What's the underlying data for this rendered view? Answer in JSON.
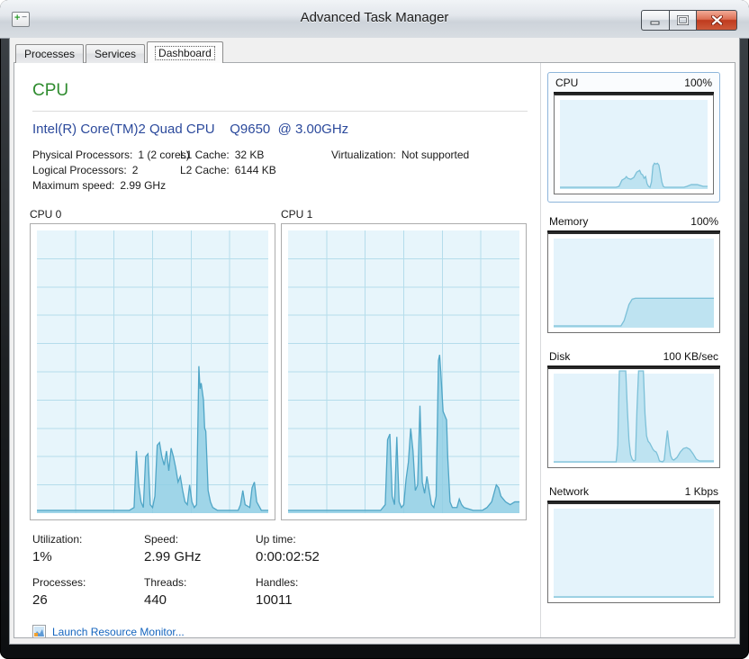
{
  "window": {
    "title": "Advanced Task Manager",
    "controls": {
      "minimize": "minimize",
      "maximize": "maximize",
      "close": "close"
    }
  },
  "tabs": [
    {
      "label": "Processes",
      "active": false
    },
    {
      "label": "Services",
      "active": false
    },
    {
      "label": "Dashboard",
      "active": true
    }
  ],
  "main": {
    "section_title": "CPU",
    "cpu_name": "Intel(R) Core(TM)2 Quad CPU    Q9650  @ 3.00GHz",
    "info": {
      "col1": [
        {
          "label": "Physical Processors:",
          "value": "1 (2 cores)"
        },
        {
          "label": "Logical Processors:",
          "value": "2"
        },
        {
          "label": "Maximum speed:",
          "value": "2.99 GHz"
        }
      ],
      "col2": [
        {
          "label": "L1 Cache:",
          "value": "32 KB"
        },
        {
          "label": "L2 Cache:",
          "value": "6144 KB"
        }
      ],
      "col3": [
        {
          "label": "Virtualization:",
          "value": "Not supported"
        }
      ]
    },
    "graphs": [
      {
        "label": "CPU 0"
      },
      {
        "label": "CPU 1"
      }
    ],
    "stats": [
      {
        "label": "Utilization:",
        "value": "1%"
      },
      {
        "label": "Speed:",
        "value": "2.99 GHz"
      },
      {
        "label": "Up time:",
        "value": "0:00:02:52"
      },
      {
        "label": "Processes:",
        "value": "26"
      },
      {
        "label": "Threads:",
        "value": "440"
      },
      {
        "label": "Handles:",
        "value": "10011"
      }
    ],
    "link": {
      "label": "Launch Resource Monitor...",
      "icon": "resource-monitor-icon"
    }
  },
  "sidebar": {
    "tiles": [
      {
        "name": "CPU",
        "scale": "100%",
        "selected": true,
        "chart": "cpu_mini"
      },
      {
        "name": "Memory",
        "scale": "100%",
        "selected": false,
        "chart": "memory_mini"
      },
      {
        "name": "Disk",
        "scale": "100 KB/sec",
        "selected": false,
        "chart": "disk_mini"
      },
      {
        "name": "Network",
        "scale": "1 Kbps",
        "selected": false,
        "chart": "network_mini"
      }
    ]
  },
  "icons": {
    "app_icon": "app-window-plus-icon",
    "minimize": "minimize-icon",
    "maximize": "maximize-icon",
    "close": "close-icon",
    "link": "resource-monitor-icon"
  },
  "colors": {
    "section_green": "#2e8b2e",
    "cpu_name_blue": "#2c4a9c",
    "link_blue": "#1464be",
    "close_red": "#bf3a1e",
    "selected_tile_border": "#8fb6db"
  },
  "chart_data": {
    "type": "area",
    "ylim_percent": [
      0,
      100
    ],
    "styles": {
      "main": {
        "fill": "#8fcee3",
        "fill_opacity": 0.82,
        "stroke": "#4fa5c6",
        "bg": "#e7f5fb",
        "grid_color": "#b5ddeb"
      },
      "mini": {
        "fill": "#bce2f0",
        "fill_opacity": 0.95,
        "stroke": "#7cc0d8",
        "bg": "#e4f3fb"
      }
    },
    "series": {
      "cpu0": {
        "label": "CPU 0",
        "style": "main",
        "grid": {
          "v": 6,
          "h": 10
        },
        "points": [
          [
            0,
            1
          ],
          [
            40,
            1
          ],
          [
            42,
            2
          ],
          [
            43,
            22
          ],
          [
            44,
            10
          ],
          [
            45,
            4
          ],
          [
            46,
            2
          ],
          [
            47,
            20
          ],
          [
            48,
            21
          ],
          [
            49,
            3
          ],
          [
            50,
            2
          ],
          [
            51,
            6
          ],
          [
            52,
            24
          ],
          [
            53,
            25
          ],
          [
            54,
            20
          ],
          [
            55,
            17
          ],
          [
            56,
            22
          ],
          [
            57,
            15
          ],
          [
            58,
            23
          ],
          [
            59,
            20
          ],
          [
            60,
            16
          ],
          [
            61,
            11
          ],
          [
            62,
            13
          ],
          [
            63,
            8
          ],
          [
            64,
            4
          ],
          [
            65,
            3
          ],
          [
            66,
            10
          ],
          [
            67,
            4
          ],
          [
            68,
            2
          ],
          [
            69,
            3
          ],
          [
            70,
            52
          ],
          [
            70.5,
            44
          ],
          [
            71,
            46
          ],
          [
            72,
            40
          ],
          [
            72.5,
            30
          ],
          [
            73,
            29
          ],
          [
            74,
            8
          ],
          [
            75,
            4
          ],
          [
            76,
            2
          ],
          [
            78,
            1
          ],
          [
            87,
            1
          ],
          [
            88,
            3
          ],
          [
            89,
            8
          ],
          [
            90,
            3
          ],
          [
            92,
            2
          ],
          [
            93,
            9
          ],
          [
            94,
            11
          ],
          [
            95,
            4
          ],
          [
            97,
            1
          ],
          [
            100,
            1
          ]
        ]
      },
      "cpu1": {
        "label": "CPU 1",
        "style": "main",
        "grid": {
          "v": 6,
          "h": 10
        },
        "points": [
          [
            0,
            1
          ],
          [
            40,
            1
          ],
          [
            42,
            3
          ],
          [
            43,
            26
          ],
          [
            44,
            28
          ],
          [
            45,
            6
          ],
          [
            46,
            3
          ],
          [
            47,
            27
          ],
          [
            47.5,
            15
          ],
          [
            48,
            4
          ],
          [
            49,
            2
          ],
          [
            50,
            3
          ],
          [
            51,
            12
          ],
          [
            52,
            18
          ],
          [
            53,
            30
          ],
          [
            54,
            22
          ],
          [
            55,
            8
          ],
          [
            56,
            10
          ],
          [
            57,
            38
          ],
          [
            57.5,
            25
          ],
          [
            58,
            11
          ],
          [
            59,
            7
          ],
          [
            60,
            13
          ],
          [
            61,
            8
          ],
          [
            62,
            3
          ],
          [
            63,
            2
          ],
          [
            64,
            6
          ],
          [
            65,
            54
          ],
          [
            65.5,
            56
          ],
          [
            66,
            50
          ],
          [
            67,
            36
          ],
          [
            68,
            34
          ],
          [
            68.5,
            33
          ],
          [
            69,
            20
          ],
          [
            70,
            4
          ],
          [
            71,
            2
          ],
          [
            73,
            2
          ],
          [
            74,
            5
          ],
          [
            75,
            3
          ],
          [
            76,
            2
          ],
          [
            80,
            1
          ],
          [
            84,
            1
          ],
          [
            86,
            2
          ],
          [
            88,
            4
          ],
          [
            90,
            10
          ],
          [
            91,
            9
          ],
          [
            92,
            6
          ],
          [
            94,
            4
          ],
          [
            96,
            3
          ],
          [
            98,
            4
          ],
          [
            100,
            4
          ]
        ]
      },
      "cpu_mini": {
        "label": "CPU",
        "style": "mini",
        "points": [
          [
            0,
            2
          ],
          [
            38,
            2
          ],
          [
            40,
            3
          ],
          [
            42,
            10
          ],
          [
            44,
            12
          ],
          [
            45,
            14
          ],
          [
            46,
            12
          ],
          [
            48,
            11
          ],
          [
            50,
            13
          ],
          [
            52,
            19
          ],
          [
            54,
            21
          ],
          [
            55,
            17
          ],
          [
            56,
            16
          ],
          [
            57,
            12
          ],
          [
            58,
            14
          ],
          [
            59,
            6
          ],
          [
            60,
            3
          ],
          [
            61,
            2
          ],
          [
            62,
            8
          ],
          [
            63,
            26
          ],
          [
            64,
            29
          ],
          [
            65,
            28
          ],
          [
            66,
            29
          ],
          [
            67,
            27
          ],
          [
            68,
            18
          ],
          [
            69,
            8
          ],
          [
            70,
            3
          ],
          [
            71,
            2
          ],
          [
            84,
            2
          ],
          [
            86,
            3
          ],
          [
            89,
            5
          ],
          [
            93,
            5
          ],
          [
            97,
            3
          ],
          [
            100,
            3
          ]
        ]
      },
      "memory_mini": {
        "label": "Memory",
        "style": "mini",
        "points": [
          [
            0,
            2
          ],
          [
            42,
            2
          ],
          [
            44,
            8
          ],
          [
            47,
            26
          ],
          [
            49,
            32
          ],
          [
            51,
            33
          ],
          [
            100,
            33
          ]
        ]
      },
      "disk_mini": {
        "label": "Disk",
        "style": "mini",
        "points": [
          [
            0,
            1
          ],
          [
            39,
            1
          ],
          [
            40,
            20
          ],
          [
            41,
            103
          ],
          [
            45,
            103
          ],
          [
            46,
            60
          ],
          [
            47,
            25
          ],
          [
            48,
            9
          ],
          [
            49,
            4
          ],
          [
            50,
            2
          ],
          [
            51,
            3
          ],
          [
            52,
            60
          ],
          [
            53,
            103
          ],
          [
            56,
            103
          ],
          [
            57,
            55
          ],
          [
            58,
            30
          ],
          [
            59,
            24
          ],
          [
            60,
            22
          ],
          [
            62,
            15
          ],
          [
            63,
            13
          ],
          [
            64,
            12
          ],
          [
            65,
            8
          ],
          [
            66,
            2
          ],
          [
            68,
            1
          ],
          [
            69,
            3
          ],
          [
            70,
            20
          ],
          [
            71,
            36
          ],
          [
            72,
            20
          ],
          [
            73,
            8
          ],
          [
            74,
            4
          ],
          [
            75,
            3
          ],
          [
            77,
            6
          ],
          [
            79,
            12
          ],
          [
            81,
            16
          ],
          [
            83,
            17
          ],
          [
            85,
            15
          ],
          [
            87,
            10
          ],
          [
            89,
            4
          ],
          [
            91,
            2
          ],
          [
            100,
            2
          ]
        ]
      },
      "network_mini": {
        "label": "Network",
        "style": "mini",
        "points": [
          [
            0,
            1
          ],
          [
            100,
            1
          ]
        ]
      }
    }
  }
}
